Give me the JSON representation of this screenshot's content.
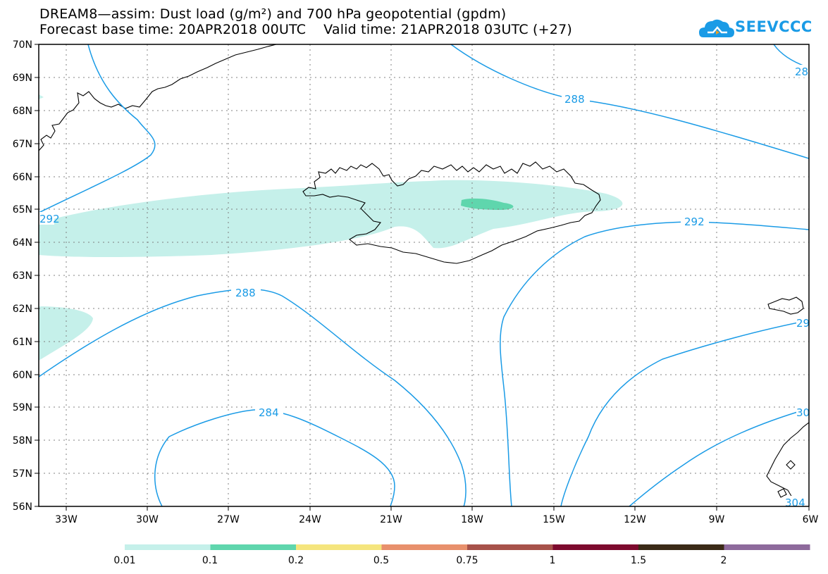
{
  "title": {
    "line1": "DREAM8—assim: Dust load (g/m²) and 700 hPa geopotential (gpdm)",
    "line2": "Forecast base time: 20APR2018 00UTC    Valid time: 21APR2018 03UTC (+27)"
  },
  "logo": {
    "text": "SEEVCCC",
    "icon": "cloud-icon",
    "color": "#1a9be6"
  },
  "map": {
    "lon_range": [
      -34.5,
      -6
    ],
    "lat_range": [
      56,
      70
    ],
    "lat_labels": [
      "70N",
      "69N",
      "68N",
      "67N",
      "66N",
      "65N",
      "64N",
      "63N",
      "62N",
      "61N",
      "60N",
      "59N",
      "58N",
      "57N",
      "56N"
    ],
    "lon_labels": [
      "33W",
      "30W",
      "27W",
      "24W",
      "21W",
      "18W",
      "15W",
      "12W",
      "9W",
      "6W"
    ],
    "contour_color": "#1a9be6",
    "contour_labels": [
      "288",
      "292",
      "288",
      "284",
      "292",
      "29",
      "30",
      "304",
      "28"
    ],
    "dust_colors": {
      "light": "#c5f0ea",
      "medium": "#5fd6ad"
    }
  },
  "colorbar": {
    "labels": [
      "0.01",
      "0.1",
      "0.2",
      "0.5",
      "0.75",
      "1",
      "1.5",
      "2"
    ],
    "colors": [
      "#c5f0ea",
      "#5fd6ad",
      "#f5e57d",
      "#e8906c",
      "#a7524a",
      "#7d0a2e",
      "#3b2a17",
      "#8e6a9c"
    ]
  }
}
